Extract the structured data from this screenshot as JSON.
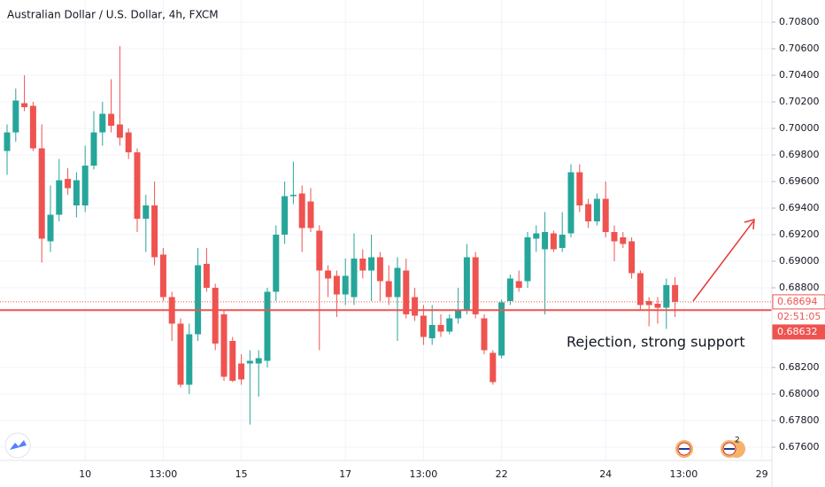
{
  "chart_data": {
    "type": "candlestick",
    "title": "Australian Dollar / U.S. Dollar, 4h, FXCM",
    "categories": [
      null,
      null,
      null,
      null,
      null,
      null,
      null,
      null,
      null,
      "10",
      null,
      null,
      null,
      null,
      null,
      null,
      null,
      null,
      "13:00",
      null,
      null,
      null,
      null,
      null,
      null,
      null,
      null,
      "15",
      null,
      null,
      null,
      null,
      null,
      null,
      null,
      null,
      null,
      null,
      null,
      "17",
      null,
      null,
      null,
      null,
      null,
      null,
      null,
      null,
      "13:00",
      null,
      null,
      null,
      null,
      null,
      null,
      null,
      null,
      "22",
      null,
      null,
      null,
      null,
      null,
      null,
      null,
      null,
      null,
      null,
      null,
      "24",
      null,
      null,
      null,
      null,
      null,
      null,
      null,
      null,
      "13:00",
      null,
      null,
      null,
      null,
      null,
      null,
      null,
      null,
      "29"
    ],
    "open": [
      0.6983,
      0.6997,
      0.7019,
      0.7017,
      0.6985,
      0.6915,
      0.6935,
      0.6962,
      0.6942,
      0.6942,
      0.6972,
      0.6997,
      0.7011,
      0.7003,
      0.6997,
      0.6982,
      0.6932,
      0.6942,
      0.6905,
      0.6873,
      0.6853,
      0.6807,
      0.6845,
      0.6898,
      0.688,
      0.686,
      0.684,
      0.6823,
      0.6823,
      0.6823,
      0.6825,
      0.6877,
      0.692,
      0.6949,
      0.6951,
      0.6945,
      0.6923,
      0.6893,
      0.6889,
      0.6875,
      0.6873,
      0.6902,
      0.6893,
      0.6903,
      0.6885,
      0.6873,
      0.6893,
      0.6873,
      0.6859,
      0.6842,
      0.6852,
      0.6847,
      0.6857,
      0.6863,
      0.6903,
      0.6857,
      0.6831,
      0.6829,
      0.687,
      0.6885,
      0.6885,
      0.6917,
      0.6909,
      0.6921,
      0.691,
      0.6921,
      0.6967,
      0.6943,
      0.693,
      0.6947,
      0.6922,
      0.6918,
      0.6915,
      0.6891,
      0.687,
      0.6868,
      0.6865,
      0.6882,
      null,
      null,
      null,
      null,
      null,
      null,
      null,
      null,
      null,
      null
    ],
    "high": [
      0.7003,
      0.703,
      0.704,
      0.702,
      0.7003,
      0.6957,
      0.6977,
      0.697,
      0.6967,
      0.6987,
      0.7013,
      0.702,
      0.7037,
      0.7062,
      0.7,
      0.6985,
      0.695,
      0.696,
      0.691,
      0.6877,
      0.6857,
      0.6853,
      0.691,
      0.691,
      0.6883,
      0.6863,
      0.6843,
      0.683,
      0.6833,
      0.6833,
      0.688,
      0.6927,
      0.696,
      0.6975,
      0.6957,
      0.6955,
      0.6927,
      0.6897,
      0.6893,
      0.6902,
      0.6921,
      0.6909,
      0.692,
      0.6907,
      0.6897,
      0.6903,
      0.6902,
      0.688,
      0.6867,
      0.6867,
      0.686,
      0.686,
      0.688,
      0.6913,
      0.6907,
      0.686,
      0.6833,
      0.6871,
      0.689,
      0.6893,
      0.6922,
      0.6927,
      0.6937,
      0.6923,
      0.6937,
      0.6973,
      0.6973,
      0.6947,
      0.6951,
      0.696,
      0.6927,
      0.6922,
      0.6918,
      0.6893,
      0.6873,
      0.6873,
      0.6887,
      0.6888,
      null,
      null,
      null,
      null,
      null,
      null,
      null,
      null,
      null,
      null
    ],
    "low": [
      0.6965,
      0.699,
      0.7013,
      0.6983,
      0.6899,
      0.6907,
      0.693,
      0.695,
      0.6933,
      0.6937,
      0.6969,
      0.6987,
      0.6997,
      0.6987,
      0.6977,
      0.6922,
      0.6907,
      0.6897,
      0.687,
      0.684,
      0.6805,
      0.68,
      0.684,
      0.6877,
      0.6833,
      0.681,
      0.6809,
      0.6807,
      0.6777,
      0.6798,
      0.682,
      0.687,
      0.6913,
      0.6943,
      0.6907,
      0.6922,
      0.6833,
      0.6873,
      0.6858,
      0.6867,
      0.6867,
      0.6887,
      0.687,
      0.687,
      0.6867,
      0.684,
      0.6857,
      0.6855,
      0.6837,
      0.6837,
      0.6843,
      0.6845,
      0.6853,
      0.686,
      0.6857,
      0.683,
      0.6807,
      0.6827,
      0.6867,
      0.6877,
      0.688,
      0.6907,
      0.686,
      0.6907,
      0.6907,
      0.6918,
      0.6937,
      0.6925,
      0.6927,
      0.6918,
      0.69,
      0.691,
      0.6887,
      0.6863,
      0.6851,
      0.6853,
      0.6849,
      0.6858,
      null,
      null,
      null,
      null,
      null,
      null,
      null,
      null,
      null,
      null
    ],
    "close": [
      0.6997,
      0.7021,
      0.7016,
      0.6985,
      0.6917,
      0.6935,
      0.6961,
      0.6955,
      0.6961,
      0.6972,
      0.6997,
      0.7011,
      0.7002,
      0.6993,
      0.6982,
      0.6932,
      0.6942,
      0.6903,
      0.6873,
      0.6853,
      0.6807,
      0.6845,
      0.6897,
      0.688,
      0.6838,
      0.6813,
      0.681,
      0.6811,
      0.6825,
      0.6827,
      0.6877,
      0.692,
      0.6949,
      0.695,
      0.6925,
      0.6925,
      0.6893,
      0.6887,
      0.6875,
      0.6889,
      0.6902,
      0.6893,
      0.6903,
      0.6885,
      0.6873,
      0.6895,
      0.686,
      0.6859,
      0.6843,
      0.6852,
      0.6847,
      0.6857,
      0.6863,
      0.6903,
      0.686,
      0.6833,
      0.6809,
      0.6869,
      0.6887,
      0.688,
      0.6918,
      0.6921,
      0.6922,
      0.6909,
      0.692,
      0.6967,
      0.6942,
      0.693,
      0.6947,
      0.6922,
      0.6915,
      0.6913,
      0.6891,
      0.6867,
      0.6867,
      0.6865,
      0.6882,
      0.68694,
      null,
      null,
      null,
      null,
      null,
      null,
      null,
      null,
      null,
      null
    ],
    "up_color": "#26a69a",
    "down_color": "#ef5350",
    "ylim": [
      0.675,
      0.70967
    ],
    "yticks": [
      {
        "value": 0.676,
        "label": "0.67600"
      },
      {
        "value": 0.678,
        "label": "0.67800"
      },
      {
        "value": 0.68,
        "label": "0.68000"
      },
      {
        "value": 0.682,
        "label": "0.68200"
      },
      {
        "value": 0.688,
        "label": "0.68800"
      },
      {
        "value": 0.69,
        "label": "0.69000"
      },
      {
        "value": 0.692,
        "label": "0.69200"
      },
      {
        "value": 0.694,
        "label": "0.69400"
      },
      {
        "value": 0.696,
        "label": "0.69600"
      },
      {
        "value": 0.698,
        "label": "0.69800"
      },
      {
        "value": 0.7,
        "label": "0.70000"
      },
      {
        "value": 0.702,
        "label": "0.70200"
      },
      {
        "value": 0.704,
        "label": "0.70400"
      },
      {
        "value": 0.706,
        "label": "0.70600"
      },
      {
        "value": 0.708,
        "label": "0.70800"
      }
    ],
    "grid": true,
    "price_lines": [
      {
        "value": 0.68694,
        "style": "dotted",
        "color": "#ef5350"
      },
      {
        "value": 0.68632,
        "style": "solid",
        "color": "#ef5350"
      }
    ],
    "countdown": "02:51:05",
    "annotation": "Rejection, strong support",
    "event_badge": "2"
  }
}
